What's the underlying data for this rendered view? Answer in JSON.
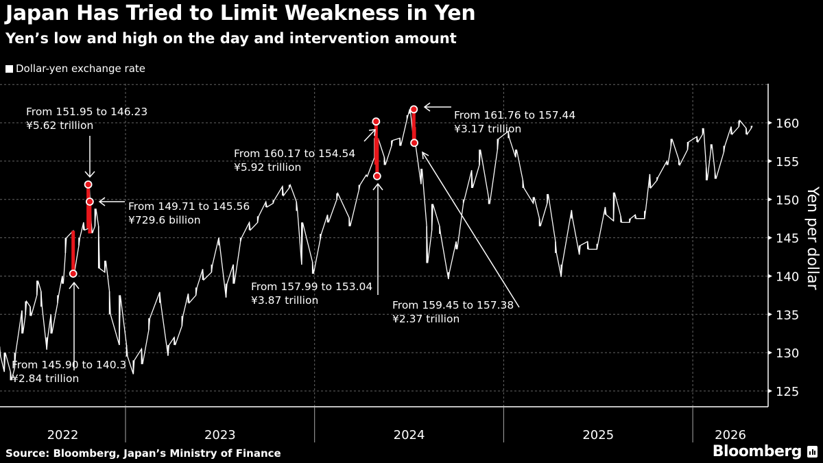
{
  "title": "Japan Has Tried to Limit Weakness in Yen",
  "subtitle": "Yen’s low and high on the day and intervention amount",
  "legend": {
    "label": "Dollar-yen exchange rate",
    "color": "#ffffff"
  },
  "source": "Source: Bloomberg, Japan’s Ministry of Finance",
  "logo": "Bloomberg",
  "colors": {
    "background": "#000000",
    "series": "#ffffff",
    "intervention": "#e8161b",
    "grid": "#666666"
  },
  "chart_data": {
    "type": "line",
    "title": "Japan Has Tried to Limit Weakness in Yen",
    "subtitle": "Yen’s low and high on the day and intervention amount",
    "ylabel": "Yen per dollar",
    "xlabel": "",
    "ylim": [
      122.9,
      165
    ],
    "xlim": [
      "2022-05-03",
      "2026-05-28"
    ],
    "y_ticks": [
      125,
      130,
      135,
      140,
      145,
      150,
      155,
      160
    ],
    "x_tick_labels": [
      "2022",
      "2023",
      "2024",
      "2025",
      "2026"
    ],
    "grid": true,
    "legend_position": "top-left",
    "series": [
      {
        "name": "Dollar-yen exchange rate",
        "fields": [
          "date",
          "low",
          "high"
        ],
        "points": [
          [
            "2022-05-03",
            129.5,
            130.8
          ],
          [
            "2022-05-12",
            127.5,
            130.0
          ],
          [
            "2022-05-24",
            126.4,
            127.5
          ],
          [
            "2022-06-01",
            128.0,
            130.0
          ],
          [
            "2022-06-15",
            132.5,
            135.5
          ],
          [
            "2022-06-22",
            135.0,
            136.7
          ],
          [
            "2022-07-01",
            134.8,
            136.0
          ],
          [
            "2022-07-14",
            137.5,
            139.4
          ],
          [
            "2022-07-22",
            136.0,
            138.0
          ],
          [
            "2022-08-02",
            130.4,
            132.0
          ],
          [
            "2022-08-10",
            132.5,
            135.0
          ],
          [
            "2022-08-23",
            136.5,
            137.5
          ],
          [
            "2022-09-01",
            139.0,
            140.0
          ],
          [
            "2022-09-07",
            143.0,
            145.0
          ],
          [
            "2022-09-22",
            140.3,
            145.9
          ],
          [
            "2022-10-03",
            144.0,
            145.0
          ],
          [
            "2022-10-12",
            146.0,
            147.0
          ],
          [
            "2022-10-21",
            146.2,
            151.95
          ],
          [
            "2022-10-27",
            145.6,
            146.8
          ],
          [
            "2022-11-03",
            146.5,
            148.8
          ],
          [
            "2022-11-10",
            141.0,
            146.5
          ],
          [
            "2022-11-22",
            140.5,
            142.0
          ],
          [
            "2022-12-01",
            135.0,
            138.0
          ],
          [
            "2022-12-20",
            131.0,
            137.5
          ],
          [
            "2023-01-03",
            129.5,
            131.0
          ],
          [
            "2023-01-16",
            127.2,
            129.0
          ],
          [
            "2023-02-01",
            128.5,
            130.5
          ],
          [
            "2023-02-15",
            133.0,
            134.5
          ],
          [
            "2023-03-08",
            136.5,
            137.9
          ],
          [
            "2023-03-24",
            129.6,
            131.0
          ],
          [
            "2023-04-05",
            131.0,
            132.0
          ],
          [
            "2023-04-20",
            133.5,
            134.8
          ],
          [
            "2023-05-02",
            136.5,
            137.7
          ],
          [
            "2023-05-17",
            137.5,
            138.5
          ],
          [
            "2023-05-30",
            139.5,
            140.9
          ],
          [
            "2023-06-16",
            140.5,
            141.5
          ],
          [
            "2023-06-30",
            144.0,
            145.0
          ],
          [
            "2023-07-14",
            137.2,
            139.0
          ],
          [
            "2023-07-28",
            139.0,
            141.5
          ],
          [
            "2023-08-11",
            144.5,
            145.0
          ],
          [
            "2023-08-28",
            146.0,
            147.0
          ],
          [
            "2023-09-13",
            147.0,
            147.8
          ],
          [
            "2023-09-29",
            149.0,
            149.7
          ],
          [
            "2023-10-13",
            149.5,
            149.9
          ],
          [
            "2023-10-31",
            150.5,
            151.7
          ],
          [
            "2023-11-13",
            151.5,
            151.9
          ],
          [
            "2023-11-27",
            148.5,
            149.7
          ],
          [
            "2023-12-07",
            141.5,
            147.0
          ],
          [
            "2023-12-28",
            140.3,
            141.8
          ],
          [
            "2024-01-12",
            144.8,
            145.5
          ],
          [
            "2024-01-26",
            147.0,
            148.0
          ],
          [
            "2024-02-13",
            150.0,
            150.8
          ],
          [
            "2024-03-08",
            146.5,
            147.6
          ],
          [
            "2024-03-27",
            151.3,
            151.9
          ],
          [
            "2024-04-10",
            153.0,
            153.2
          ],
          [
            "2024-04-26",
            155.5,
            158.0
          ],
          [
            "2024-04-29",
            154.54,
            160.17
          ],
          [
            "2024-05-01",
            153.04,
            157.99
          ],
          [
            "2024-05-15",
            154.5,
            155.5
          ],
          [
            "2024-05-29",
            157.0,
            157.7
          ],
          [
            "2024-06-14",
            157.0,
            158.0
          ],
          [
            "2024-06-28",
            160.5,
            161.0
          ],
          [
            "2024-07-03",
            161.2,
            161.76
          ],
          [
            "2024-07-11",
            157.44,
            161.76
          ],
          [
            "2024-07-12",
            157.38,
            159.45
          ],
          [
            "2024-07-25",
            152.0,
            154.0
          ],
          [
            "2024-08-05",
            141.7,
            146.5
          ],
          [
            "2024-08-15",
            146.0,
            149.4
          ],
          [
            "2024-08-30",
            145.5,
            146.5
          ],
          [
            "2024-09-16",
            139.6,
            140.5
          ],
          [
            "2024-10-01",
            143.5,
            144.5
          ],
          [
            "2024-10-15",
            149.5,
            150.0
          ],
          [
            "2024-10-31",
            151.5,
            153.8
          ],
          [
            "2024-11-15",
            154.5,
            156.5
          ],
          [
            "2024-12-03",
            149.4,
            150.2
          ],
          [
            "2024-12-20",
            156.5,
            157.9
          ],
          [
            "2025-01-10",
            158.0,
            158.9
          ],
          [
            "2025-01-24",
            155.5,
            156.5
          ],
          [
            "2025-02-07",
            151.5,
            152.5
          ],
          [
            "2025-02-27",
            149.5,
            150.3
          ],
          [
            "2025-03-11",
            146.5,
            147.5
          ],
          [
            "2025-03-26",
            149.5,
            150.7
          ],
          [
            "2025-04-11",
            143.0,
            144.5
          ],
          [
            "2025-04-22",
            139.9,
            141.5
          ],
          [
            "2025-05-12",
            147.5,
            148.6
          ],
          [
            "2025-05-27",
            142.8,
            144.0
          ],
          [
            "2025-06-12",
            143.5,
            144.5
          ],
          [
            "2025-06-30",
            143.5,
            144.2
          ],
          [
            "2025-07-16",
            148.0,
            149.0
          ],
          [
            "2025-08-01",
            147.2,
            150.9
          ],
          [
            "2025-08-15",
            147.0,
            147.8
          ],
          [
            "2025-09-01",
            147.0,
            147.5
          ],
          [
            "2025-09-12",
            147.5,
            148.0
          ],
          [
            "2025-09-30",
            147.5,
            148.5
          ],
          [
            "2025-10-10",
            151.5,
            153.3
          ],
          [
            "2025-10-24",
            152.5,
            152.9
          ],
          [
            "2025-11-12",
            154.5,
            155.0
          ],
          [
            "2025-11-20",
            157.0,
            157.9
          ],
          [
            "2025-12-05",
            154.5,
            155.2
          ],
          [
            "2025-12-22",
            156.5,
            157.5
          ],
          [
            "2026-01-09",
            157.5,
            158.2
          ],
          [
            "2026-01-20",
            158.5,
            159.3
          ],
          [
            "2026-01-27",
            152.5,
            154.2
          ],
          [
            "2026-02-05",
            156.5,
            157.2
          ],
          [
            "2026-02-13",
            152.7,
            153.5
          ],
          [
            "2026-03-02",
            156.2,
            157.0
          ],
          [
            "2026-03-16",
            158.5,
            159.5
          ],
          [
            "2026-03-31",
            159.5,
            160.3
          ],
          [
            "2026-04-14",
            158.5,
            159.3
          ],
          [
            "2026-04-24",
            159.3,
            159.6
          ]
        ]
      }
    ],
    "interventions": [
      {
        "date": "2022-09-22",
        "from": 145.9,
        "to": 140.31,
        "marker": 140.31,
        "line1": "From 145.90 to 140.3",
        "line2": "¥2.84 trillion"
      },
      {
        "date": "2022-10-21",
        "from": 151.95,
        "to": 146.23,
        "marker": 151.95,
        "line1": "From 151.95 to 146.23",
        "line2": "¥5.62 trillion"
      },
      {
        "date": "2022-10-24",
        "from": 149.71,
        "to": 145.56,
        "marker": 149.71,
        "line1": "From 149.71 to 145.56",
        "line2": "¥729.6 billion"
      },
      {
        "date": "2024-04-29",
        "from": 160.17,
        "to": 154.54,
        "marker": 160.17,
        "line1": "From 160.17 to 154.54",
        "line2": "¥5.92 trillion"
      },
      {
        "date": "2024-05-01",
        "from": 157.99,
        "to": 153.04,
        "marker": 153.04,
        "line1": "From 157.99 to 153.04",
        "line2": "¥3.87 trillion"
      },
      {
        "date": "2024-07-11",
        "from": 161.76,
        "to": 157.44,
        "marker": 161.76,
        "line1": "From 161.76 to 157.44",
        "line2": "¥3.17 trillion"
      },
      {
        "date": "2024-07-12",
        "from": 159.45,
        "to": 157.38,
        "marker": 157.38,
        "line1": "From 159.45 to 157.38",
        "line2": "¥2.37 trillion"
      }
    ]
  }
}
